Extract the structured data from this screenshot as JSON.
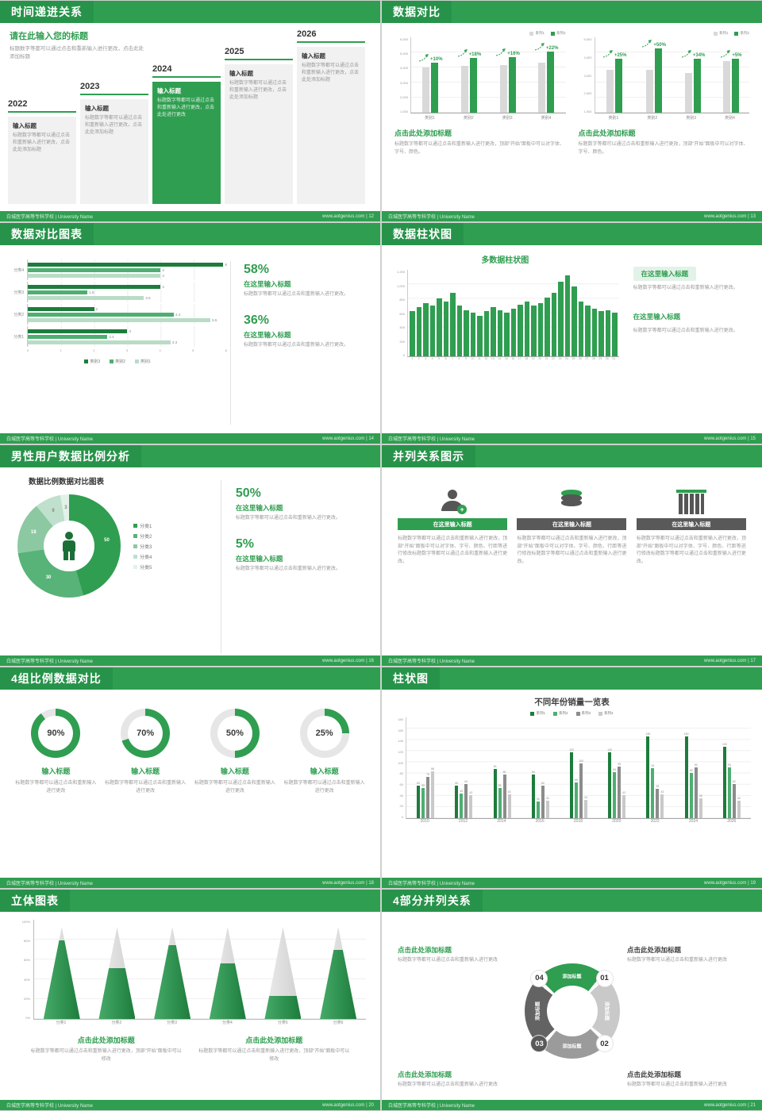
{
  "meta": {
    "footer_left": "白城医学高等专科学校 | University Name",
    "footer_site": "www.aotgenius.com",
    "footer_sep": "|"
  },
  "colors": {
    "primary_green": "#2f9e50",
    "dark_green": "#1d7c3c",
    "light_gray_bar": "#d9d9d9",
    "dark_gray": "#595959"
  },
  "slides": {
    "s12": {
      "page": "12",
      "title": "时间递进关系",
      "intro_title": "请在此输入您的标题",
      "intro_body": "标题数字等都可以通过点击和重新输入进行更改，点击此处添加标题",
      "steps": [
        {
          "year": "2022",
          "box_title": "输入标题",
          "box_body": "标题数字等都可以通过点击和重新输入进行更改，点击此处添加标题"
        },
        {
          "year": "2023",
          "box_title": "输入标题",
          "box_body": "标题数字等都可以通过点击和重新输入进行更改，点击此处添加标题"
        },
        {
          "year": "2024",
          "box_title": "输入标题",
          "box_body": "标题数字等都可以通过点击和重新输入进行更改，点击此处进行更改"
        },
        {
          "year": "2025",
          "box_title": "输入标题",
          "box_body": "标题数字等都可以通过点击和重新输入进行更改，点击此处添加标题"
        },
        {
          "year": "2026",
          "box_title": "输入标题",
          "box_body": "标题数字等都可以通过点击和重新输入进行更改，点击此处添加标题"
        }
      ]
    },
    "s13": {
      "page": "13",
      "title": "数据对比",
      "panels": [
        {
          "cap_title": "点击此处添加标题",
          "cap_body": "标题数字等都可以通过点击和重新输入进行更改，顶部“开始”面板中可以对字体、字号、颜色。",
          "chart": {
            "legend": [
              "系列1",
              "系列2"
            ],
            "legend_colors": [
              "#d9d9d9",
              "#2f9e50"
            ],
            "yticks": [
              "6,000",
              "5,000",
              "4,000",
              "3,000",
              "2,000",
              "1,000"
            ],
            "ymax": 6000,
            "cats": [
              "类别1",
              "类别2",
              "类别3",
              "类别4"
            ],
            "series1": [
              3800,
              3900,
              4000,
              4200
            ],
            "series2": [
              4200,
              4600,
              4650,
              5150
            ],
            "labels": [
              "+10%",
              "+18%",
              "+16%",
              "+22%"
            ]
          }
        },
        {
          "cap_title": "点击此处添加标题",
          "cap_body": "标题数字等都可以通过点击和重新输入进行更改，顶部“开始”面板中可以对字体、字号、颜色。",
          "chart": {
            "legend": [
              "系列1",
              "系列2"
            ],
            "legend_colors": [
              "#d9d9d9",
              "#2f9e50"
            ],
            "yticks": [
              "5,000",
              "4,000",
              "3,000",
              "2,000",
              "1,000"
            ],
            "ymax": 5000,
            "cats": [
              "类别1",
              "类别2",
              "类别3",
              "类别4"
            ],
            "series1": [
              3000,
              3000,
              2800,
              3600
            ],
            "series2": [
              3750,
              4500,
              3750,
              3800
            ],
            "labels": [
              "+25%",
              "+50%",
              "+34%",
              "+5%"
            ]
          }
        }
      ]
    },
    "s14": {
      "page": "14",
      "title": "数据对比图表",
      "chart": {
        "groups": [
          "分类4",
          "分类3",
          "分类2",
          "分类1"
        ],
        "series": [
          [
            6,
            4,
            4
          ],
          [
            4,
            1.8,
            3.5
          ],
          [
            2,
            4.4,
            5.5
          ],
          [
            3,
            2.4,
            4.3
          ]
        ],
        "colors": [
          "#1d7c3c",
          "#4fae72",
          "#b9dcc7"
        ],
        "legend": [
          "类别3",
          "类别2",
          "类别1"
        ],
        "xmax": 6,
        "xticks": [
          "0",
          "1",
          "2",
          "3",
          "4",
          "5",
          "6"
        ]
      },
      "stats": [
        {
          "pct": "58%",
          "title": "在这里输入标题",
          "body": "标题数字等都可以通过点击和重新输入进行更改。"
        },
        {
          "pct": "36%",
          "title": "在这里输入标题",
          "body": "标题数字等都可以通过点击和重新输入进行更改。"
        }
      ]
    },
    "s15": {
      "page": "15",
      "title": "数据柱状图",
      "chart_title": "多数据柱状图",
      "chart": {
        "values": [
          650,
          700,
          760,
          720,
          830,
          780,
          900,
          720,
          660,
          620,
          580,
          640,
          700,
          660,
          620,
          680,
          740,
          780,
          720,
          760,
          840,
          900,
          1060,
          1150,
          1000,
          780,
          720,
          680,
          640,
          660,
          620
        ],
        "ymax": 1200,
        "yticks": [
          "1,200",
          "1,000",
          "800",
          "600",
          "400",
          "200",
          "0"
        ],
        "xlabels": [
          "1",
          "2",
          "3",
          "4",
          "5",
          "6",
          "7",
          "8",
          "9",
          "10",
          "11",
          "12",
          "13",
          "14",
          "15",
          "16",
          "17",
          "18",
          "19",
          "20",
          "21",
          "22",
          "23",
          "24",
          "25",
          "26",
          "27",
          "28",
          "29",
          "30",
          "31"
        ]
      },
      "blocks": [
        {
          "title": "在这里输入标题",
          "body": "标题数字等都可以通过点击和重新输入进行更改。"
        },
        {
          "title": "在这里输入标题",
          "body": "标题数字等都可以通过点击和重新输入进行更改。"
        }
      ]
    },
    "s16": {
      "page": "16",
      "title": "男性用户数据比例分析",
      "chart_title": "数据比例数据对比图表",
      "donut": {
        "values": [
          50,
          30,
          18,
          9,
          3
        ],
        "labels": [
          "50",
          "30",
          "18",
          "9",
          "3"
        ],
        "colors": [
          "#2f9e50",
          "#57b377",
          "#8cc9a2",
          "#bfe0cc",
          "#e3f2e8"
        ]
      },
      "legend": [
        "分类1",
        "分类2",
        "分类3",
        "分类4",
        "分类5"
      ],
      "stats": [
        {
          "pct": "50%",
          "title": "在这里输入标题",
          "body": "标题数字等都可以通过点击和重新输入进行更改。"
        },
        {
          "pct": "5%",
          "title": "在这里输入标题",
          "body": "标题数字等都可以通过点击和重新输入进行更改。"
        }
      ]
    },
    "s17": {
      "page": "17",
      "title": "并列关系图示",
      "cards": [
        {
          "icon": "nurse-icon",
          "header_color": "#2f9e50",
          "title": "在这里输入标题",
          "body": "标题数字等都可以通过点击和重新输入进行更改，顶部“开始”面板中可以对字体、字号、颜色、行距等进行修改标题数字等都可以通过点击和重新输入进行更改。"
        },
        {
          "icon": "database-icon",
          "header_color": "#595959",
          "title": "在这里输入标题",
          "body": "标题数字等都可以通过点击和重新输入进行更改，顶部“开始”面板中可以对字体、字号、颜色、行距等进行修改标题数字等都可以通过点击和重新输入进行更改。"
        },
        {
          "icon": "building-icon",
          "header_color": "#595959",
          "title": "在这里输入标题",
          "body": "标题数字等都可以通过点击和重新输入进行更改，顶部“开始”面板中可以对字体、字号、颜色、行距等进行修改标题数字等都可以通过点击和重新输入进行更改。"
        }
      ]
    },
    "s18": {
      "page": "18",
      "title": "4组比例数据对比",
      "items": [
        {
          "pct": 90,
          "label": "90%",
          "title": "输入标题",
          "body": "标题数字等都可以通过点击和重新输入进行更改"
        },
        {
          "pct": 70,
          "label": "70%",
          "title": "输入标题",
          "body": "标题数字等都可以通过点击和重新输入进行更改"
        },
        {
          "pct": 50,
          "label": "50%",
          "title": "输入标题",
          "body": "标题数字等都可以通过点击和重新输入进行更改"
        },
        {
          "pct": 25,
          "label": "25%",
          "title": "输入标题",
          "body": "标题数字等都可以通过点击和重新输入进行更改"
        }
      ]
    },
    "s19": {
      "page": "19",
      "title": "柱状图",
      "chart_title": "不同年份销量一览表",
      "chart": {
        "legend": [
          "系列1",
          "系列2",
          "系列3",
          "系列4"
        ],
        "colors": [
          "#1d7c3c",
          "#4fae72",
          "#8c8c8c",
          "#c9c9c9"
        ],
        "years": [
          "2010",
          "2012",
          "2014",
          "2016",
          "2018",
          "2020",
          "2022",
          "2024",
          "2026"
        ],
        "series": [
          [
            60,
            60,
            90,
            80,
            120,
            120,
            150,
            150,
            130
          ],
          [
            55,
            45,
            55,
            30,
            65,
            84,
            92,
            83,
            93
          ],
          [
            75,
            62,
            80,
            60,
            100,
            95,
            53,
            93,
            62
          ],
          [
            86,
            42,
            43,
            32,
            34,
            42,
            43,
            36,
            32
          ]
        ],
        "ymax": 180,
        "yticks": [
          "180",
          "160",
          "140",
          "120",
          "100",
          "80",
          "60",
          "40",
          "20",
          "0"
        ]
      }
    },
    "s20": {
      "page": "20",
      "title": "立体图表",
      "chart": {
        "cats": [
          "分类1",
          "分类2",
          "分类3",
          "分类4",
          "分类5",
          "分类6"
        ],
        "fill": [
          85,
          55,
          80,
          60,
          25,
          75
        ],
        "yticks": [
          "100%",
          "80%",
          "60%",
          "40%",
          "20%",
          "0%"
        ]
      },
      "blocks": [
        {
          "title": "点击此处添加标题",
          "body": "标题数字等都可以通过点击和重新输入进行更改，顶部“开始”面板中可以修改"
        },
        {
          "title": "点击此处添加标题",
          "body": "标题数字等都可以通过点击和重新输入进行更改，顶部“开始”面板中可以修改"
        }
      ]
    },
    "s21": {
      "page": "21",
      "title": "4部分并列关系",
      "ring": {
        "labels": [
          "添加标题",
          "添加标题",
          "添加标题",
          "添加标题"
        ],
        "numbers": [
          "01",
          "02",
          "03",
          "04"
        ],
        "colors": [
          "#2f9e50",
          "#c9c9c9",
          "#9b9b9b",
          "#636363"
        ]
      },
      "blocks": [
        {
          "title": "点击此处添加标题",
          "body": "标题数字等都可以通过点击和重新输入进行更改"
        },
        {
          "title": "点击此处添加标题",
          "body": "标题数字等都可以通过点击和重新输入进行更改"
        },
        {
          "title": "点击此处添加标题",
          "body": "标题数字等都可以通过点击和重新输入进行更改"
        },
        {
          "title": "点击此处添加标题",
          "body": "标题数字等都可以通过点击和重新输入进行更改"
        }
      ]
    }
  }
}
